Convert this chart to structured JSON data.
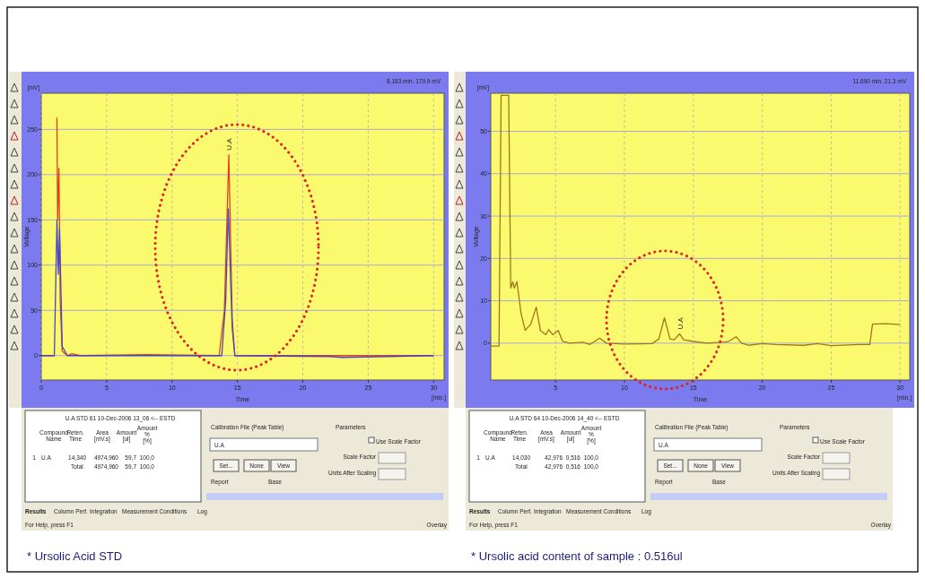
{
  "chart_data": [
    {
      "type": "line",
      "xlabel": "Time",
      "ylabel": "Voltage",
      "xlim": [
        0,
        30.8
      ],
      "ylim": [
        -27,
        290
      ],
      "xticks": [
        0,
        5,
        10,
        15,
        20,
        25,
        30
      ],
      "yticks": [
        0,
        50,
        100,
        150,
        200,
        250
      ],
      "grid": true,
      "annotations": [
        "8.183 min. 179.9 mV",
        "[mV]",
        "[min.]",
        {
          "text": "U.A",
          "x": 14.34,
          "y": 222
        }
      ],
      "series": [
        {
          "color": "#e0401c",
          "x": [
            0,
            1,
            1.1,
            1.2,
            1.25,
            1.35,
            1.45,
            1.6,
            2,
            2.3,
            3,
            8,
            13.6,
            14.0,
            14.34,
            14.6,
            14.8,
            30
          ],
          "values": [
            0,
            0,
            null,
            263,
            150,
            207,
            60,
            5,
            0,
            2,
            0,
            1,
            0,
            50,
            222,
            40,
            0,
            0
          ]
        },
        {
          "color": "#4646c8",
          "x": [
            0,
            1,
            1.1,
            1.2,
            1.3,
            1.4,
            1.6,
            2,
            13.8,
            14.1,
            14.3,
            14.6,
            14.8,
            22,
            23,
            30
          ],
          "values": [
            0,
            0,
            75,
            150,
            90,
            140,
            10,
            0,
            0,
            60,
            162,
            30,
            0,
            -1,
            -2,
            0
          ]
        }
      ]
    },
    {
      "type": "line",
      "xlabel": "Time",
      "ylabel": "Voltage",
      "xlim": [
        0.3,
        30.7
      ],
      "ylim": [
        -8.7,
        59
      ],
      "xticks": [
        5,
        10,
        15,
        20,
        25,
        30
      ],
      "yticks": [
        0,
        10,
        20,
        30,
        40,
        50
      ],
      "grid": true,
      "annotations": [
        "11.690 min. 21.3 mV",
        "[mV]",
        "[min.]",
        {
          "text": "U.A",
          "x": 14.03,
          "y": 2.2
        }
      ],
      "series": [
        {
          "color": "#a0781c",
          "x": [
            0.3,
            0.9,
            1.05,
            1.6,
            1.75,
            1.9,
            2.0,
            2.2,
            2.5,
            2.8,
            3.2,
            3.6,
            3.9,
            4.3,
            4.5,
            4.8,
            5.2,
            5.5,
            6,
            7,
            7.5,
            8.2,
            8.7,
            10,
            12,
            12.5,
            12.9,
            13.3,
            13.6,
            14,
            14.3,
            15,
            16,
            17,
            17.5,
            18.1,
            18.5,
            19,
            20,
            21,
            23,
            24,
            25,
            27,
            27.8,
            28,
            29,
            30
          ],
          "values": [
            -0.7,
            -0.7,
            58.5,
            58.5,
            13,
            14.5,
            13,
            14.5,
            7,
            3,
            4.5,
            8.5,
            3,
            2,
            3.2,
            2,
            3,
            0.5,
            0,
            0.2,
            -0.3,
            1.2,
            0,
            -0.2,
            -0.1,
            1,
            6,
            1,
            0.8,
            2.2,
            0.8,
            0.4,
            0,
            0.2,
            0.3,
            1.5,
            0,
            -0.5,
            -0.1,
            -0.3,
            -0.5,
            -0.1,
            -0.6,
            -0.3,
            -0.3,
            4.5,
            4.6,
            4.4
          ]
        }
      ]
    },
    {
      "type": "other",
      "annotations": [
        "U.A STD 61 10-Dec-2006 13_06 <-- ESTD",
        "Compound Name",
        "Reten. Time",
        "Area [mV.s]",
        "Amount [ul]",
        "Amount % [%]",
        "1",
        "U.A",
        "14,340",
        "4974,960",
        "59,7",
        "100,0",
        "Total",
        "4974,960",
        "59,7",
        "100,0",
        "Calibration File (Peak Table)",
        "U.A",
        "Set...",
        "None",
        "View",
        "Report",
        "Base",
        "Parameters",
        "Use Scale Factor",
        "Scale Factor",
        "Units After Scaling",
        "Results",
        "Column Perf.",
        "Integration",
        "Measurement Conditions",
        "Log",
        "For Help, press F1",
        "Overlay",
        "* Ursolic Acid STD"
      ]
    },
    {
      "type": "other",
      "annotations": [
        "U.A STD 64 10-Dec-2006 14_40 <-- ESTD",
        "Compound Name",
        "Reten. Time",
        "Area [mV.s]",
        "Amount [ul]",
        "Amount % [%]",
        "1",
        "U.A",
        "14,030",
        "42,976",
        "0,516",
        "100,0",
        "Total",
        "42,976",
        "0,516",
        "100,0",
        "Calibration File (Peak Table)",
        "U.A",
        "Set...",
        "None",
        "View",
        "Report",
        "Base",
        "Parameters",
        "Use Scale Factor",
        "Scale Factor",
        "Units After Scaling",
        "Results",
        "Column Perf.",
        "Integration",
        "Measurement Conditions",
        "Log",
        "For Help, press F1",
        "Overlay",
        "* Ursolic acid content of sample : 0.516ul"
      ]
    }
  ]
}
